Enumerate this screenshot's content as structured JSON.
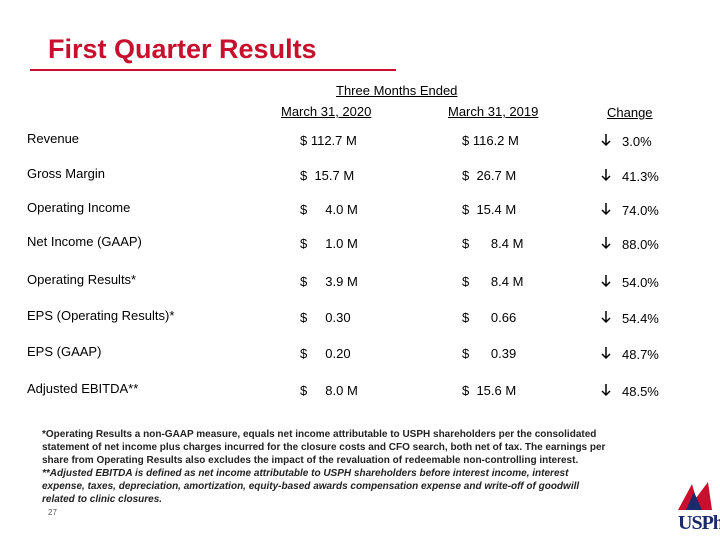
{
  "header": {
    "title": "First Quarter Results"
  },
  "table": {
    "group_header": "Three Months Ended",
    "columns": [
      "March 31, 2020",
      "March 31, 2019",
      "Change"
    ],
    "rows": [
      [
        "Revenue",
        "$ 112.7 M",
        "$ 116.2 M",
        "3.0%"
      ],
      [
        "Gross Margin",
        "$  15.7 M",
        "$  26.7 M",
        "41.3%"
      ],
      [
        "Operating Income",
        "$     4.0 M",
        "$  15.4 M",
        "74.0%"
      ],
      [
        "Net Income  (GAAP)",
        "$     1.0 M",
        "$      8.4 M",
        "88.0%"
      ],
      [
        "Operating Results*",
        "$     3.9 M",
        "$      8.4 M",
        "54.0%"
      ],
      [
        "EPS (Operating Results)*",
        "$     0.30",
        "$      0.66",
        "54.4%"
      ],
      [
        "EPS (GAAP)",
        "$     0.20",
        "$      0.39",
        "48.7%"
      ],
      [
        "Adjusted EBITDA**",
        "$     8.0 M",
        "$  15.6 M",
        "48.5%"
      ]
    ]
  },
  "footnotes": [
    "*Operating Results a non-GAAP measure, equals net income attributable to USPH shareholders per the consolidated",
    "statement of net income plus charges incurred for the closure costs and CFO search, both net of tax. The earnings per",
    "share from Operating Results also excludes the impact of the revaluation of redeemable non-controlling interest.",
    "**Adjusted EBITDA is defined as net income attributable to USPH shareholders before interest income, interest",
    "expense, taxes, depreciation, amortization, equity-based awards compensation expense and write-off of goodwill",
    "related to clinic closures."
  ],
  "footer": {
    "page": "27",
    "logo": "USPh"
  }
}
